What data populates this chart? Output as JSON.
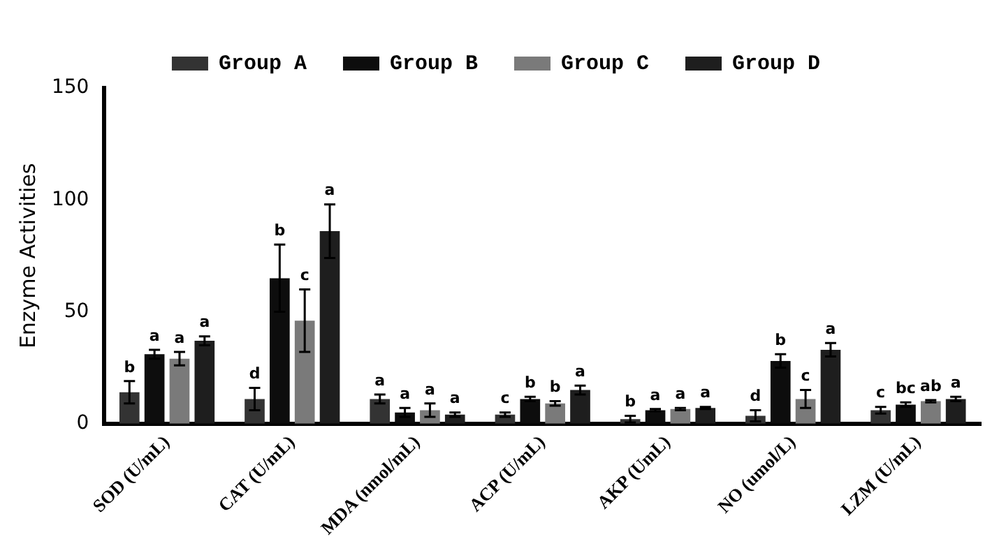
{
  "chart_data": {
    "type": "bar",
    "ylabel": "Enzyme Activities",
    "categories": [
      "SOD (U/mL)",
      "CAT (U/mL)",
      "MDA (nmol/mL)",
      "ACP (U/mL)",
      "AKP (UmL)",
      "NO (umol/L)",
      "LZM (U/mL)"
    ],
    "series": [
      {
        "name": "Group A",
        "color": "#333333",
        "values": [
          14,
          11,
          11,
          4,
          2,
          3.5,
          6
        ],
        "errors": [
          5,
          5,
          2,
          1,
          1.5,
          2.5,
          1.5
        ],
        "value_labels": [
          "b",
          "d",
          "a",
          "c",
          "b",
          "d",
          "c"
        ]
      },
      {
        "name": "Group B",
        "color": "#0d0d0d",
        "values": [
          31,
          65,
          5,
          11,
          6,
          28,
          8.5
        ],
        "errors": [
          2,
          15,
          2,
          1,
          0.5,
          3,
          1
        ],
        "value_labels": [
          "a",
          "b",
          "a",
          "b",
          "a",
          "b",
          "bc"
        ]
      },
      {
        "name": "Group C",
        "color": "#7a7a7a",
        "values": [
          29,
          46,
          6,
          9,
          6.5,
          11,
          10
        ],
        "errors": [
          3,
          14,
          3,
          1,
          0.5,
          4,
          0.5
        ],
        "value_labels": [
          "a",
          "c",
          "a",
          "b",
          "a",
          "c",
          "ab"
        ]
      },
      {
        "name": "Group D",
        "color": "#1e1e1e",
        "values": [
          37,
          86,
          4,
          15,
          7,
          33,
          11
        ],
        "errors": [
          2,
          12,
          1,
          2,
          0.5,
          3,
          1
        ],
        "value_labels": [
          "a",
          "a",
          "a",
          "a",
          "a",
          "a",
          "a"
        ]
      }
    ],
    "ylim": [
      0,
      150
    ],
    "yticks": [
      0,
      50,
      100,
      150
    ],
    "grid": false,
    "legend": "top"
  }
}
